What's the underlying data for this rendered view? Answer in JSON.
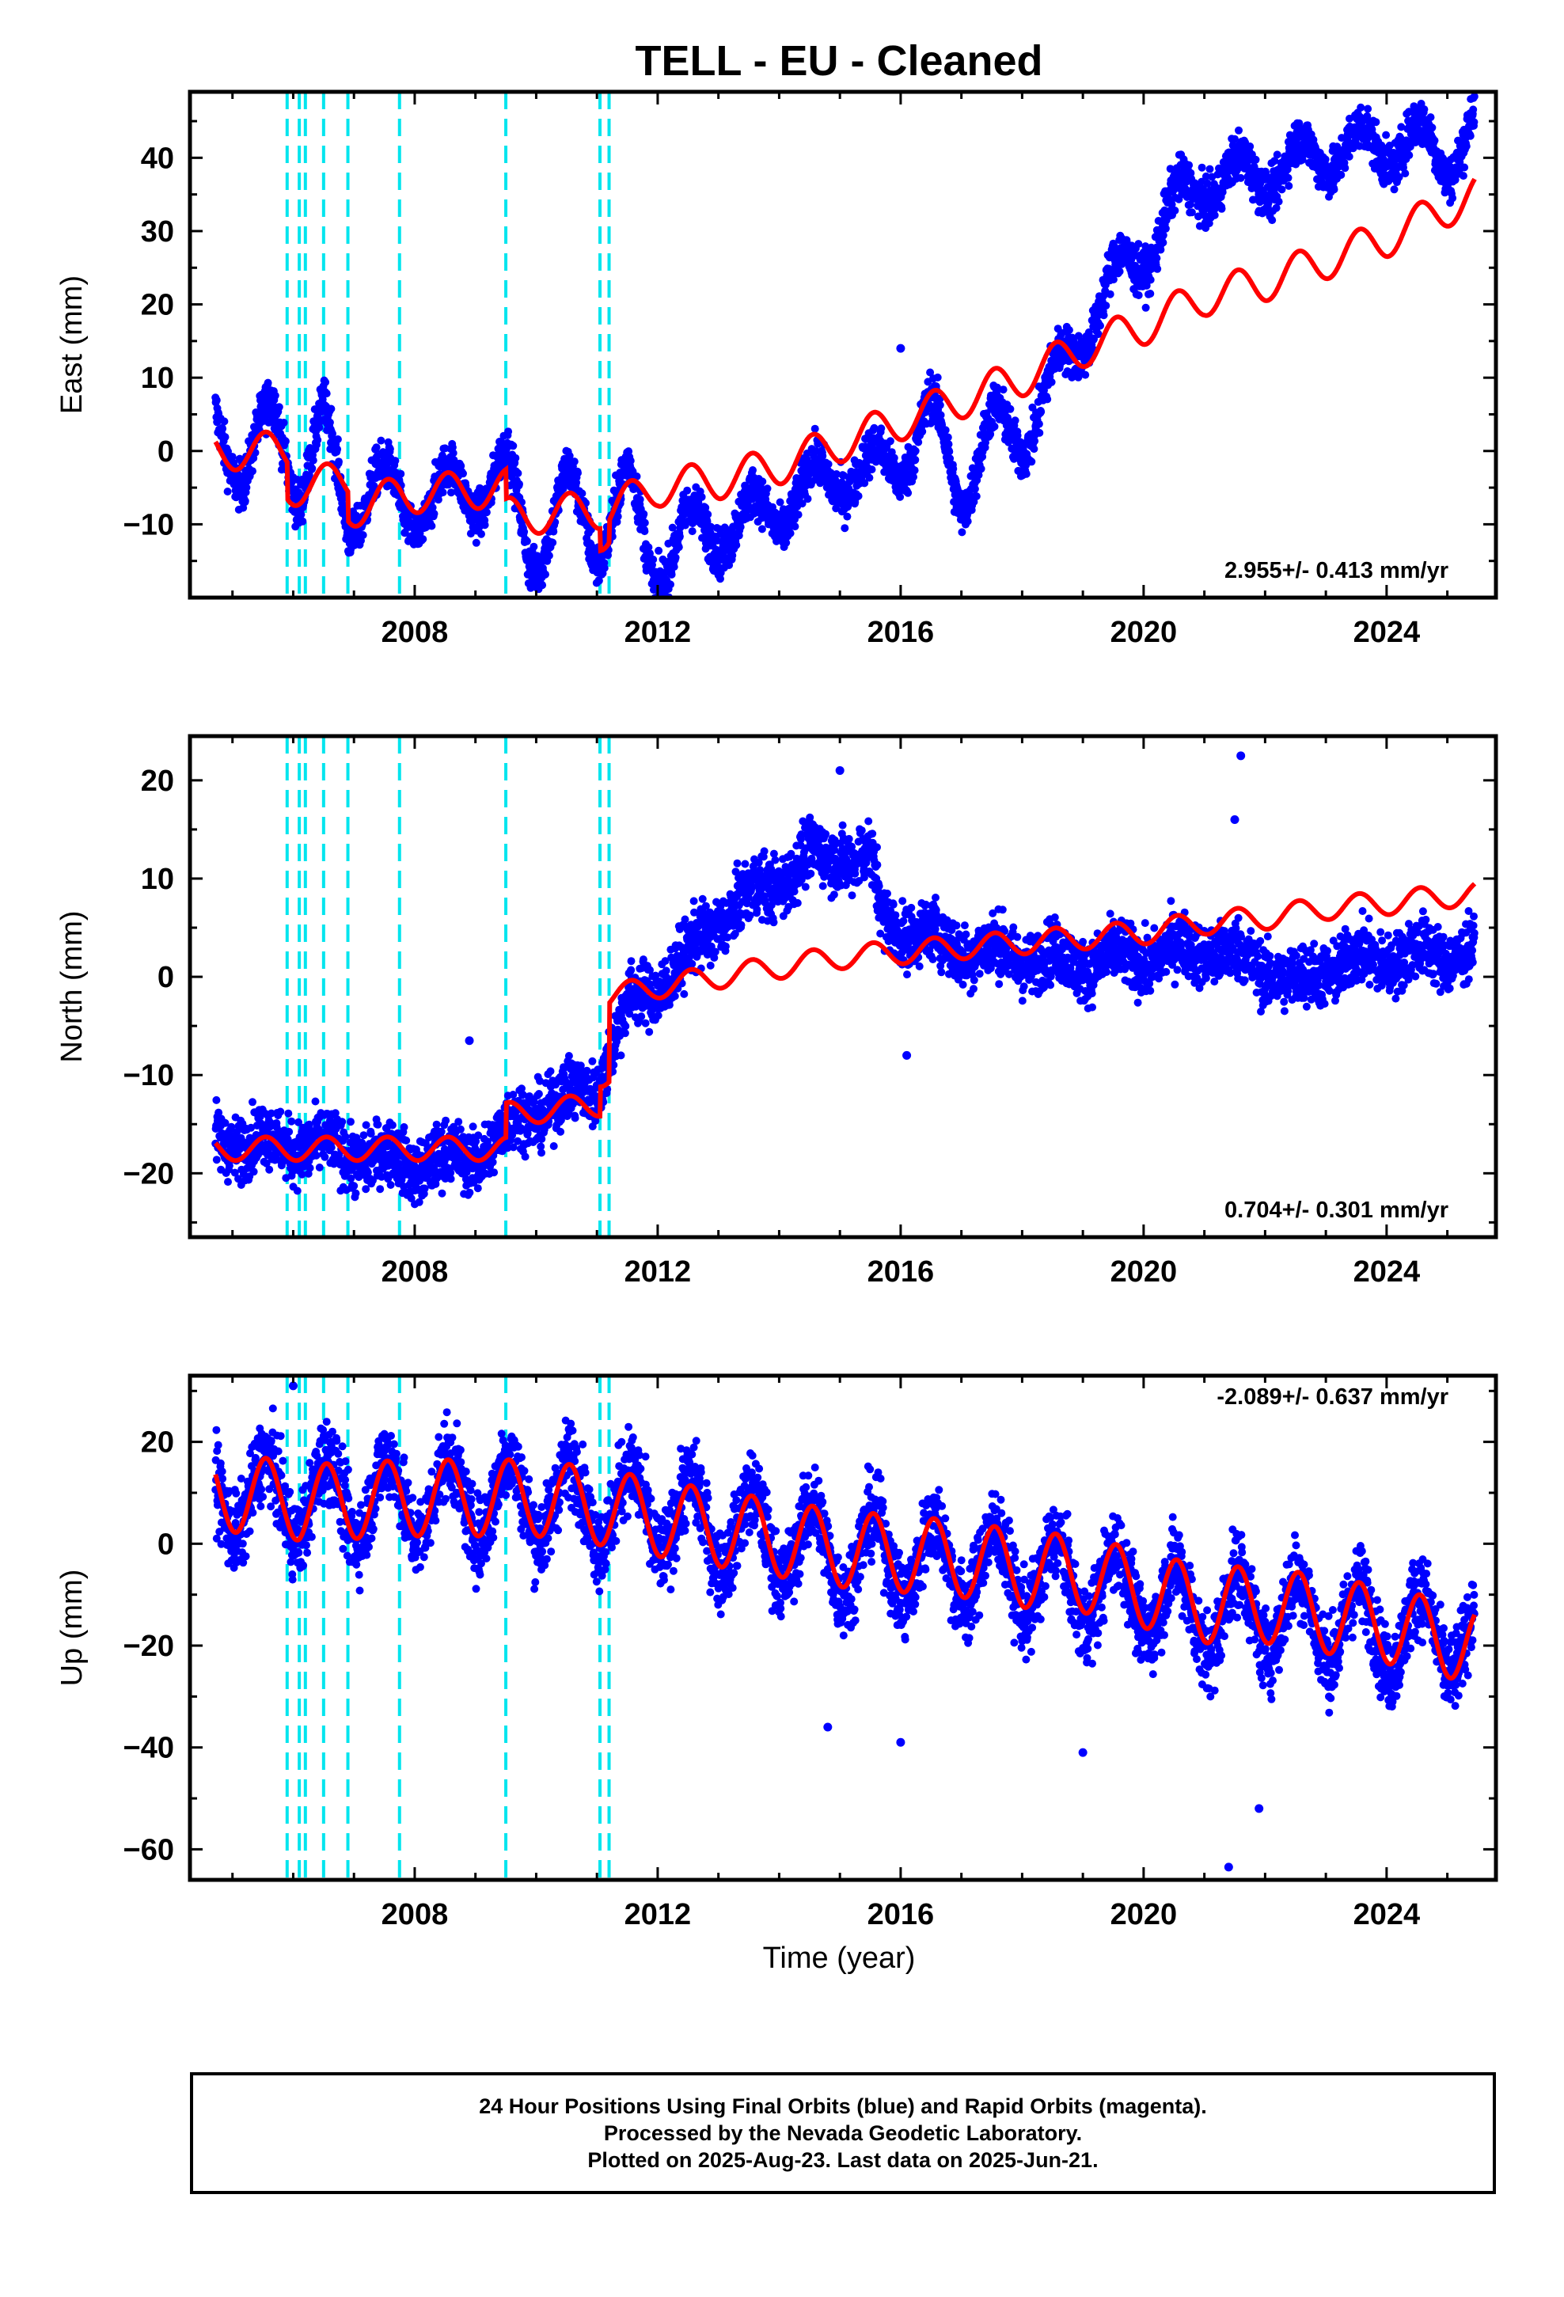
{
  "title": "TELL  - EU - Cleaned",
  "xlabel": "Time (year)",
  "caption": [
    "24 Hour Positions Using Final Orbits (blue) and Rapid Orbits (magenta).",
    "Processed by the Nevada Geodetic Laboratory.",
    "Plotted on 2025-Aug-23. Last data on 2025-Jun-21."
  ],
  "colors": {
    "final_orbits": "#0000ff",
    "model": "#ff0000",
    "steps": "#00e5ee"
  },
  "chart_data": [
    {
      "type": "scatter",
      "ylabel": "East (mm)",
      "rate_label": "2.955+/- 0.413 mm/yr",
      "xlim": [
        2004.3,
        2025.8
      ],
      "ylim": [
        -20,
        49
      ],
      "xticks": [
        2008,
        2012,
        2016,
        2020,
        2024
      ],
      "yticks": [
        -10,
        0,
        10,
        20,
        30,
        40
      ],
      "step_epochs": [
        2005.9,
        2006.1,
        2006.2,
        2006.5,
        2006.9,
        2007.75,
        2009.5,
        2011.05,
        2011.2
      ],
      "series": [
        {
          "role": "observations",
          "trend": [
            [
              2004.7,
              4
            ],
            [
              2005.2,
              -2
            ],
            [
              2005.7,
              4
            ],
            [
              2006.1,
              -4
            ],
            [
              2006.5,
              3
            ],
            [
              2006.9,
              -9
            ],
            [
              2007.3,
              -4
            ],
            [
              2007.8,
              -8
            ],
            [
              2008.5,
              -6
            ],
            [
              2009.0,
              -5
            ],
            [
              2009.5,
              -3
            ],
            [
              2009.9,
              -14
            ],
            [
              2010.5,
              -6
            ],
            [
              2011.0,
              -12
            ],
            [
              2011.5,
              -5
            ],
            [
              2011.9,
              -15
            ],
            [
              2012.4,
              -12
            ],
            [
              2013.0,
              -10
            ],
            [
              2013.5,
              -10
            ],
            [
              2014.0,
              -7
            ],
            [
              2014.5,
              -6
            ],
            [
              2015.0,
              -2
            ],
            [
              2015.5,
              -4
            ],
            [
              2016.0,
              0
            ],
            [
              2016.5,
              4
            ],
            [
              2017.0,
              -5
            ],
            [
              2017.5,
              2
            ],
            [
              2018.0,
              3
            ],
            [
              2018.5,
              8
            ],
            [
              2019.0,
              17
            ],
            [
              2019.5,
              22
            ],
            [
              2020.0,
              28
            ],
            [
              2020.5,
              32
            ],
            [
              2021.0,
              38
            ],
            [
              2021.5,
              36
            ],
            [
              2022.0,
              39
            ],
            [
              2022.5,
              38
            ],
            [
              2023.0,
              42
            ],
            [
              2023.5,
              40
            ],
            [
              2024.0,
              43
            ],
            [
              2024.5,
              41
            ],
            [
              2025.0,
              41
            ],
            [
              2025.45,
              44
            ]
          ],
          "seasonal": 4,
          "scatter": 1.6,
          "outliers": [
            [
              2016.0,
              14
            ]
          ]
        },
        {
          "role": "model",
          "trend": [
            [
              2004.7,
              0
            ],
            [
              2005.9,
              0
            ],
            [
              2005.9,
              -5
            ],
            [
              2006.9,
              -4
            ],
            [
              2006.9,
              -8
            ],
            [
              2007.75,
              -6
            ],
            [
              2009.5,
              -5
            ],
            [
              2009.5,
              -9
            ],
            [
              2011.05,
              -8
            ],
            [
              2011.05,
              -11
            ],
            [
              2011.2,
              -11
            ],
            [
              2011.2,
              -8
            ],
            [
              2012.0,
              -5
            ],
            [
              2013.0,
              -4
            ],
            [
              2014.0,
              -2
            ],
            [
              2015.0,
              1
            ],
            [
              2016.0,
              4
            ],
            [
              2017.0,
              7
            ],
            [
              2018.0,
              10
            ],
            [
              2019.0,
              14
            ],
            [
              2020.0,
              17
            ],
            [
              2021.0,
              21
            ],
            [
              2022.0,
              23
            ],
            [
              2023.0,
              26
            ],
            [
              2024.0,
              29
            ],
            [
              2025.45,
              35
            ]
          ],
          "amp": 2.6
        }
      ]
    },
    {
      "type": "scatter",
      "ylabel": "North (mm)",
      "rate_label": "0.704+/- 0.301 mm/yr",
      "xlim": [
        2004.3,
        2025.8
      ],
      "ylim": [
        -26.5,
        24.5
      ],
      "xticks": [
        2008,
        2012,
        2016,
        2020,
        2024
      ],
      "yticks": [
        -20,
        -10,
        0,
        10,
        20
      ],
      "step_epochs": [
        2005.9,
        2006.1,
        2006.2,
        2006.5,
        2006.9,
        2007.75,
        2009.5,
        2011.05,
        2011.2
      ],
      "series": [
        {
          "role": "observations",
          "trend": [
            [
              2004.7,
              -16.5
            ],
            [
              2006.0,
              -17
            ],
            [
              2007.0,
              -18
            ],
            [
              2008.0,
              -19
            ],
            [
              2008.8,
              -18.5
            ],
            [
              2009.3,
              -17
            ],
            [
              2009.8,
              -14
            ],
            [
              2010.5,
              -12.5
            ],
            [
              2011.0,
              -11
            ],
            [
              2011.5,
              -3
            ],
            [
              2012.0,
              -1
            ],
            [
              2012.5,
              2
            ],
            [
              2013.0,
              6
            ],
            [
              2013.5,
              8
            ],
            [
              2014.0,
              10
            ],
            [
              2014.5,
              12
            ],
            [
              2015.0,
              12.5
            ],
            [
              2015.5,
              12
            ],
            [
              2015.7,
              6
            ],
            [
              2016.0,
              5
            ],
            [
              2016.5,
              4
            ],
            [
              2017.0,
              3
            ],
            [
              2018.0,
              2
            ],
            [
              2019.0,
              1.5
            ],
            [
              2020.0,
              2
            ],
            [
              2021.0,
              3
            ],
            [
              2022.0,
              1
            ],
            [
              2022.5,
              -1
            ],
            [
              2023.0,
              1
            ],
            [
              2024.0,
              2
            ],
            [
              2025.45,
              2.5
            ]
          ],
          "seasonal": 1,
          "scatter": 1.6,
          "outliers": [
            [
              2008.9,
              -6.5
            ],
            [
              2015.0,
              21
            ],
            [
              2021.6,
              22.5
            ],
            [
              2021.5,
              16
            ],
            [
              2016.1,
              -8
            ]
          ]
        },
        {
          "role": "model",
          "trend": [
            [
              2004.7,
              -17.5
            ],
            [
              2009.5,
              -17.5
            ],
            [
              2009.5,
              -14
            ],
            [
              2011.05,
              -13
            ],
            [
              2011.05,
              -10
            ],
            [
              2011.2,
              -10
            ],
            [
              2011.2,
              -2
            ],
            [
              2012.0,
              -1
            ],
            [
              2013.0,
              0
            ],
            [
              2014.0,
              1
            ],
            [
              2015.0,
              2
            ],
            [
              2016.0,
              2.5
            ],
            [
              2017.0,
              3
            ],
            [
              2018.0,
              3.5
            ],
            [
              2019.0,
              4
            ],
            [
              2020.0,
              4.5
            ],
            [
              2021.0,
              5.5
            ],
            [
              2022.0,
              6
            ],
            [
              2023.0,
              7
            ],
            [
              2024.0,
              7.5
            ],
            [
              2025.45,
              8.5
            ]
          ],
          "amp": 1.2
        }
      ]
    },
    {
      "type": "scatter",
      "ylabel": "Up (mm)",
      "rate_label": "-2.089+/- 0.637 mm/yr",
      "xlim": [
        2004.3,
        2025.8
      ],
      "ylim": [
        -66,
        33
      ],
      "xticks": [
        2008,
        2012,
        2016,
        2020,
        2024
      ],
      "yticks": [
        -60,
        -40,
        -20,
        0,
        20
      ],
      "step_epochs": [
        2005.9,
        2006.1,
        2006.2,
        2006.5,
        2006.9,
        2007.75,
        2009.5,
        2011.05,
        2011.2
      ],
      "series": [
        {
          "role": "observations",
          "trend": [
            [
              2004.7,
              10
            ],
            [
              2006.0,
              9
            ],
            [
              2008.0,
              9
            ],
            [
              2010.0,
              9
            ],
            [
              2011.0,
              8
            ],
            [
              2012.0,
              6
            ],
            [
              2013.0,
              3
            ],
            [
              2014.0,
              1
            ],
            [
              2015.0,
              -2
            ],
            [
              2016.0,
              -3
            ],
            [
              2017.0,
              -4
            ],
            [
              2018.0,
              -6
            ],
            [
              2019.0,
              -8
            ],
            [
              2020.0,
              -10
            ],
            [
              2021.0,
              -14
            ],
            [
              2022.0,
              -13
            ],
            [
              2023.0,
              -15
            ],
            [
              2024.0,
              -17
            ],
            [
              2025.45,
              -18
            ]
          ],
          "seasonal": 8,
          "scatter": 4,
          "outliers": [
            [
              2006.0,
              31
            ],
            [
              2021.4,
              -63.5
            ],
            [
              2021.9,
              -52
            ],
            [
              2019.0,
              -41
            ],
            [
              2014.8,
              -36
            ],
            [
              2016.0,
              -39
            ]
          ]
        },
        {
          "role": "model",
          "trend": [
            [
              2004.7,
              10
            ],
            [
              2005.9,
              9
            ],
            [
              2006.1,
              8
            ],
            [
              2008.0,
              9
            ],
            [
              2010.0,
              9
            ],
            [
              2011.2,
              7
            ],
            [
              2012.0,
              5
            ],
            [
              2013.0,
              3
            ],
            [
              2014.0,
              1
            ],
            [
              2015.0,
              -1
            ],
            [
              2016.0,
              -2
            ],
            [
              2017.0,
              -3
            ],
            [
              2018.0,
              -5
            ],
            [
              2019.0,
              -6
            ],
            [
              2020.0,
              -9
            ],
            [
              2021.0,
              -12
            ],
            [
              2022.0,
              -12
            ],
            [
              2023.0,
              -14
            ],
            [
              2024.0,
              -16
            ],
            [
              2025.45,
              -20
            ]
          ],
          "amp": 7.5
        }
      ]
    }
  ]
}
